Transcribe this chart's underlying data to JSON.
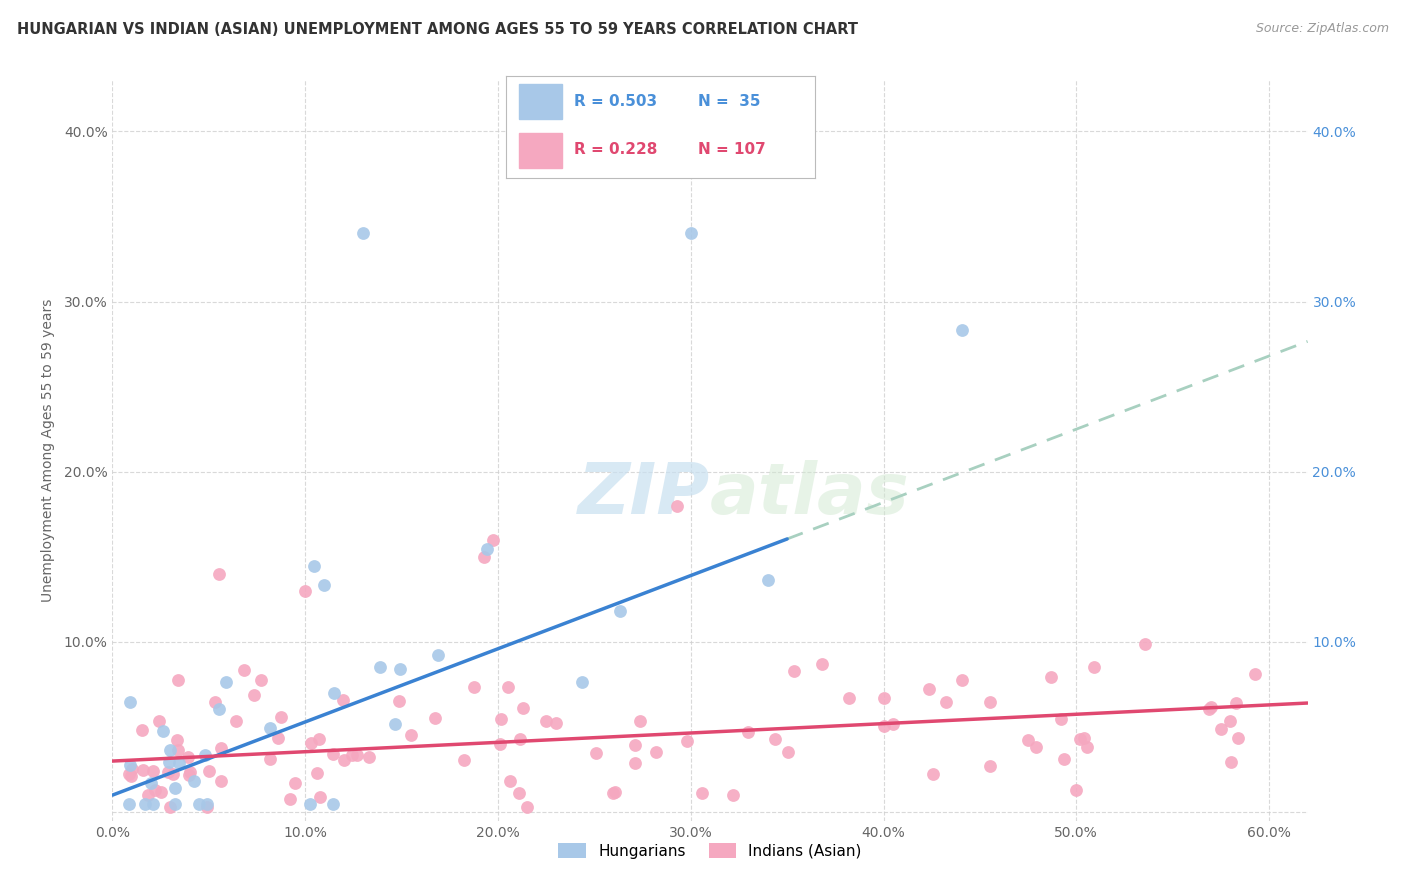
{
  "title": "HUNGARIAN VS INDIAN (ASIAN) UNEMPLOYMENT AMONG AGES 55 TO 59 YEARS CORRELATION CHART",
  "source": "Source: ZipAtlas.com",
  "ylabel": "Unemployment Among Ages 55 to 59 years",
  "xlim": [
    0.0,
    0.62
  ],
  "ylim": [
    -0.005,
    0.43
  ],
  "hungarian_R": 0.503,
  "hungarian_N": 35,
  "indian_R": 0.228,
  "indian_N": 107,
  "hungarian_color": "#a8c8e8",
  "indian_color": "#f5a8c0",
  "hungarian_line_color": "#3a82d2",
  "indian_line_color": "#e04870",
  "dashed_line_color": "#a8d0c0",
  "watermark_color": "#c8e0f0",
  "background_color": "#ffffff",
  "grid_color": "#d0d0d0",
  "hung_line_slope": 0.43,
  "hung_line_intercept": 0.01,
  "hung_line_solid_end": 0.35,
  "ind_line_slope": 0.055,
  "ind_line_intercept": 0.03,
  "right_tick_color": "#4a90d9",
  "left_tick_color": "#666666",
  "title_color": "#333333",
  "source_color": "#999999"
}
